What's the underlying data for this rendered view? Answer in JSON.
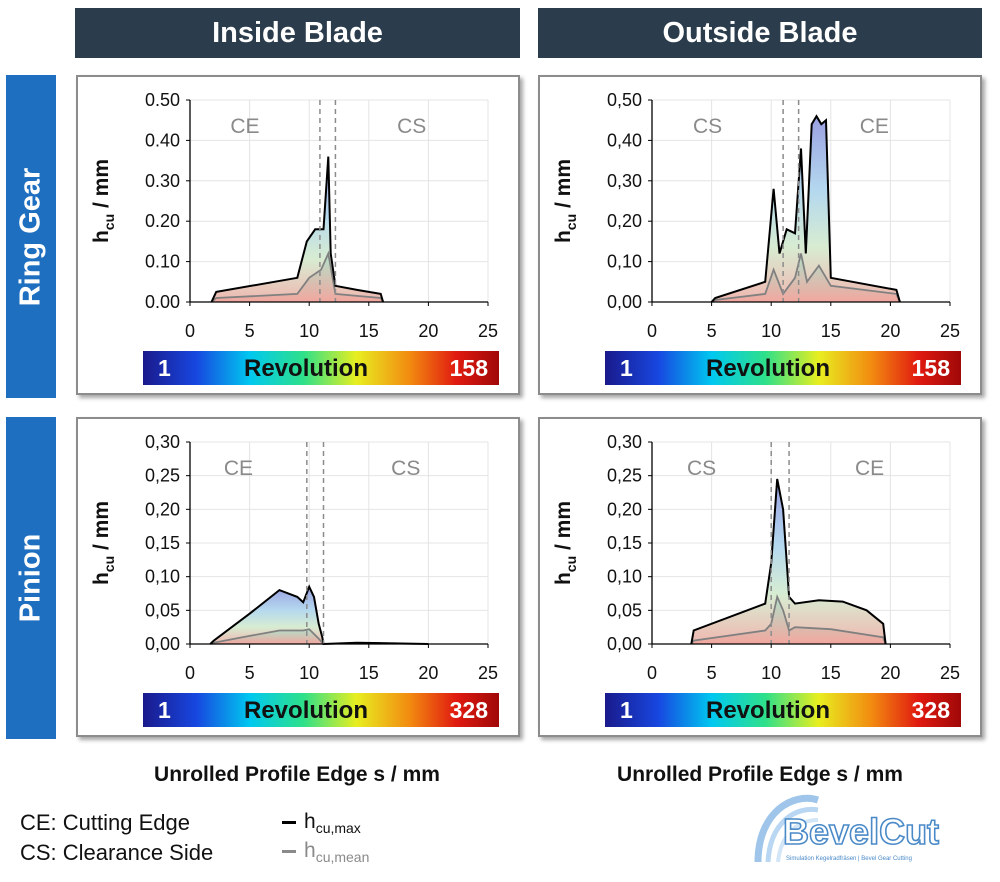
{
  "columns": [
    "Inside Blade",
    "Outside Blade"
  ],
  "rows": [
    "Ring Gear",
    "Pinion"
  ],
  "x_axis_label": "Unrolled Profile Edge s / mm",
  "legend": {
    "ce": "CE: Cutting Edge",
    "cs": "CS: Clearance Side",
    "max_label": "h",
    "max_sub": "cu,max",
    "mean_label": "h",
    "mean_sub": "cu,mean"
  },
  "logo_text": "BevelCut",
  "logo_sub": "Simulation Kegelradfräsen | Bevel Gear Cutting",
  "colors": {
    "header": "#2b3c4c",
    "row_header": "#1f6fc0",
    "max_line": "#000000",
    "mean_line": "#808080"
  },
  "chart_data": [
    {
      "id": "ring-inside",
      "type": "area",
      "ylabel_main": "h",
      "ylabel_sub": "cu",
      "ylabel_unit": " / mm",
      "xlim": [
        0,
        25
      ],
      "ylim": [
        0,
        0.5
      ],
      "xticks": [
        "0",
        "5",
        "10",
        "15",
        "20",
        "25"
      ],
      "yticks": [
        "0.00",
        "0.10",
        "0.20",
        "0.30",
        "0.40",
        "0.50"
      ],
      "ytick_values": [
        0,
        0.1,
        0.2,
        0.3,
        0.4,
        0.5
      ],
      "region_left": "CE",
      "region_right": "CS",
      "dashed_x": [
        10.9,
        12.2
      ],
      "colorbar": {
        "label": "Revolution",
        "min": "1",
        "max": "158"
      },
      "series": [
        {
          "name": "h_cu,max",
          "x": [
            1.8,
            2.2,
            9.0,
            9.8,
            10.5,
            11.2,
            11.6,
            11.8,
            12.2,
            14.0,
            16.0,
            16.2
          ],
          "y": [
            0.0,
            0.025,
            0.06,
            0.15,
            0.18,
            0.18,
            0.36,
            0.12,
            0.04,
            0.03,
            0.02,
            0.0
          ]
        },
        {
          "name": "h_cu,mean",
          "x": [
            1.8,
            2.2,
            9.0,
            10.0,
            11.0,
            11.6,
            12.2,
            14.0,
            16.0,
            16.2
          ],
          "y": [
            0.0,
            0.01,
            0.02,
            0.06,
            0.08,
            0.12,
            0.02,
            0.015,
            0.01,
            0.0
          ]
        }
      ]
    },
    {
      "id": "ring-outside",
      "type": "area",
      "ylabel_main": "h",
      "ylabel_sub": "cu",
      "ylabel_unit": " / mm",
      "xlim": [
        0,
        25
      ],
      "ylim": [
        0,
        0.5
      ],
      "xticks": [
        "0",
        "5",
        "10",
        "15",
        "20",
        "25"
      ],
      "yticks": [
        "0,00",
        "0,10",
        "0,20",
        "0,30",
        "0,40",
        "0,50"
      ],
      "ytick_values": [
        0,
        0.1,
        0.2,
        0.3,
        0.4,
        0.5
      ],
      "region_left": "CS",
      "region_right": "CE",
      "dashed_x": [
        11.0,
        12.3
      ],
      "colorbar": {
        "label": "Revolution",
        "min": "1",
        "max": "158"
      },
      "series": [
        {
          "name": "h_cu,max",
          "x": [
            5.0,
            5.3,
            9.5,
            10.2,
            10.7,
            11.3,
            12.0,
            12.5,
            12.9,
            13.4,
            13.8,
            14.2,
            14.6,
            15.0,
            20.5,
            20.8
          ],
          "y": [
            0.0,
            0.01,
            0.05,
            0.28,
            0.12,
            0.18,
            0.17,
            0.38,
            0.12,
            0.44,
            0.46,
            0.44,
            0.45,
            0.06,
            0.03,
            0.0
          ]
        },
        {
          "name": "h_cu,mean",
          "x": [
            5.0,
            5.3,
            9.5,
            10.2,
            11.0,
            12.0,
            12.5,
            13.0,
            14.0,
            15.0,
            20.5,
            20.8
          ],
          "y": [
            0.0,
            0.005,
            0.02,
            0.08,
            0.02,
            0.06,
            0.12,
            0.05,
            0.09,
            0.04,
            0.02,
            0.0
          ]
        }
      ]
    },
    {
      "id": "pinion-inside",
      "type": "area",
      "ylabel_main": "h",
      "ylabel_sub": "cu",
      "ylabel_unit": " / mm",
      "xlim": [
        0,
        25
      ],
      "ylim": [
        0,
        0.3
      ],
      "xticks": [
        "0",
        "5",
        "10",
        "15",
        "20",
        "25"
      ],
      "yticks": [
        "0,00",
        "0,05",
        "0,10",
        "0,15",
        "0,20",
        "0,25",
        "0,30"
      ],
      "ytick_values": [
        0,
        0.05,
        0.1,
        0.15,
        0.2,
        0.25,
        0.3
      ],
      "region_left": "CE",
      "region_right": "CS",
      "dashed_x": [
        9.8,
        11.2
      ],
      "colorbar": {
        "label": "Revolution",
        "min": "1",
        "max": "328"
      },
      "series": [
        {
          "name": "h_cu,max",
          "x": [
            1.7,
            2.0,
            5.0,
            7.5,
            9.0,
            9.5,
            10.0,
            10.4,
            10.8,
            11.1,
            11.2,
            14.0,
            20.0
          ],
          "y": [
            0.0,
            0.005,
            0.045,
            0.08,
            0.07,
            0.062,
            0.085,
            0.07,
            0.03,
            0.01,
            0.0,
            0.002,
            0.0
          ]
        },
        {
          "name": "h_cu,mean",
          "x": [
            1.7,
            2.0,
            5.0,
            7.5,
            9.5,
            10.0,
            10.8,
            11.2
          ],
          "y": [
            0.0,
            0.002,
            0.012,
            0.02,
            0.02,
            0.022,
            0.008,
            0.0
          ]
        }
      ]
    },
    {
      "id": "pinion-outside",
      "type": "area",
      "ylabel_main": "h",
      "ylabel_sub": "cu",
      "ylabel_unit": " / mm",
      "xlim": [
        0,
        25
      ],
      "ylim": [
        0,
        0.3
      ],
      "xticks": [
        "0",
        "5",
        "10",
        "15",
        "20",
        "25"
      ],
      "yticks": [
        "0,00",
        "0,05",
        "0,10",
        "0,15",
        "0,20",
        "0,25",
        "0,30"
      ],
      "ytick_values": [
        0,
        0.05,
        0.1,
        0.15,
        0.2,
        0.25,
        0.3
      ],
      "region_left": "CS",
      "region_right": "CE",
      "dashed_x": [
        10.0,
        11.5
      ],
      "colorbar": {
        "label": "Revolution",
        "min": "1",
        "max": "328"
      },
      "series": [
        {
          "name": "h_cu,max",
          "x": [
            3.3,
            3.5,
            9.5,
            10.0,
            10.5,
            11.0,
            11.5,
            12.0,
            14.0,
            16.0,
            18.0,
            19.4,
            19.6
          ],
          "y": [
            0.0,
            0.02,
            0.06,
            0.12,
            0.245,
            0.2,
            0.07,
            0.06,
            0.065,
            0.063,
            0.05,
            0.03,
            0.0
          ]
        },
        {
          "name": "h_cu,mean",
          "x": [
            3.3,
            3.5,
            9.5,
            10.0,
            10.5,
            11.0,
            11.5,
            12.0,
            15.0,
            19.4,
            19.6
          ],
          "y": [
            0.0,
            0.005,
            0.02,
            0.03,
            0.07,
            0.05,
            0.02,
            0.025,
            0.022,
            0.01,
            0.0
          ]
        }
      ]
    }
  ]
}
